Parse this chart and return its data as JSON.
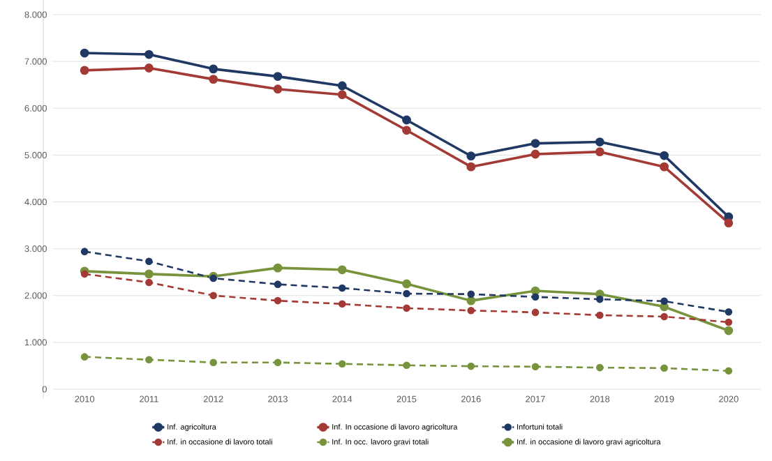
{
  "chart_data": {
    "type": "line",
    "categories": [
      "2010",
      "2011",
      "2012",
      "2013",
      "2014",
      "2015",
      "2016",
      "2017",
      "2018",
      "2019",
      "2020"
    ],
    "series": [
      {
        "name": "Inf. agricoltura",
        "color": "#1f3864",
        "line_style": "solid",
        "values": [
          7180,
          7150,
          6840,
          6680,
          6480,
          5750,
          4980,
          5250,
          5280,
          4990,
          3680
        ]
      },
      {
        "name": "Inf. In occasione di lavoro agricoltura",
        "color": "#a33a35",
        "line_style": "solid",
        "values": [
          6810,
          6860,
          6620,
          6410,
          6290,
          5530,
          4750,
          5020,
          5070,
          4750,
          3550
        ]
      },
      {
        "name": "Infortuni totali",
        "color": "#1f3864",
        "line_style": "dashed",
        "values": [
          2940,
          2730,
          2370,
          2240,
          2160,
          2040,
          2030,
          1970,
          1920,
          1880,
          1650
        ]
      },
      {
        "name": "Inf. in occasione di lavoro totali",
        "color": "#a33a35",
        "line_style": "dashed",
        "values": [
          2460,
          2280,
          2000,
          1890,
          1820,
          1730,
          1680,
          1640,
          1580,
          1550,
          1430
        ]
      },
      {
        "name": "Inf. In occ. lavoro gravi totali",
        "color": "#77933c",
        "line_style": "dashed",
        "values": [
          690,
          630,
          570,
          570,
          540,
          510,
          490,
          480,
          460,
          450,
          390
        ]
      },
      {
        "name": "Inf. in occasione di lavoro gravi agricoltura",
        "color": "#77933c",
        "line_style": "solid",
        "values": [
          2520,
          2460,
          2410,
          2590,
          2550,
          2250,
          1890,
          2100,
          2030,
          1760,
          1250
        ]
      }
    ],
    "ylim": [
      0,
      8000
    ],
    "yticks": [
      {
        "value": 0,
        "label": "0"
      },
      {
        "value": 1000,
        "label": "1.000"
      },
      {
        "value": 2000,
        "label": "2.000"
      },
      {
        "value": 3000,
        "label": "3.000"
      },
      {
        "value": 4000,
        "label": "4.000"
      },
      {
        "value": 5000,
        "label": "5.000"
      },
      {
        "value": 6000,
        "label": "6.000"
      },
      {
        "value": 7000,
        "label": "7.000"
      },
      {
        "value": 8000,
        "label": "8.000"
      }
    ],
    "grid": "y",
    "legend": "bottom",
    "marker": "circle"
  }
}
